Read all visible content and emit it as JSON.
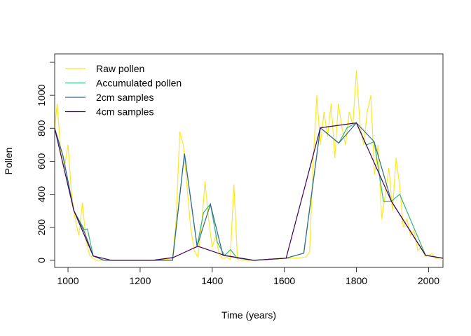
{
  "chart_data": {
    "type": "line",
    "xlabel": "Time (years)",
    "ylabel": "Pollen",
    "xlim": [
      963,
      2040
    ],
    "ylim": [
      -43,
      1251
    ],
    "xticks": [
      1000,
      1200,
      1400,
      1600,
      1800,
      2000
    ],
    "yticks": [
      0,
      200,
      400,
      600,
      800,
      1000,
      1200
    ],
    "ytick_labels": [
      "0",
      "200",
      "400",
      "600",
      "800",
      "1000",
      ""
    ],
    "grid": false,
    "legend_position": "top-left",
    "series": [
      {
        "name": "Raw pollen",
        "color": "#FDE725",
        "x": [
          963,
          970,
          980,
          990,
          1000,
          1010,
          1020,
          1030,
          1040,
          1050,
          1060,
          1070,
          1080,
          1100,
          1150,
          1200,
          1250,
          1290,
          1300,
          1310,
          1320,
          1330,
          1340,
          1350,
          1360,
          1370,
          1380,
          1390,
          1400,
          1410,
          1420,
          1430,
          1440,
          1450,
          1460,
          1470,
          1480,
          1520,
          1560,
          1600,
          1640,
          1660,
          1670,
          1680,
          1690,
          1700,
          1710,
          1720,
          1730,
          1740,
          1750,
          1760,
          1770,
          1780,
          1790,
          1800,
          1810,
          1820,
          1830,
          1840,
          1850,
          1860,
          1870,
          1880,
          1890,
          1900,
          1910,
          1920,
          1930,
          1940,
          1950,
          1960,
          1970,
          1980,
          1990,
          2000,
          2010,
          2020,
          2030,
          2040
        ],
        "y": [
          800,
          950,
          650,
          560,
          700,
          400,
          250,
          150,
          350,
          120,
          30,
          10,
          0,
          0,
          0,
          0,
          0,
          10,
          250,
          780,
          700,
          450,
          200,
          60,
          20,
          200,
          480,
          250,
          80,
          150,
          30,
          10,
          20,
          5,
          460,
          5,
          0,
          0,
          5,
          10,
          15,
          20,
          50,
          600,
          1000,
          700,
          900,
          750,
          950,
          620,
          950,
          800,
          700,
          900,
          820,
          1150,
          820,
          700,
          900,
          1000,
          520,
          700,
          250,
          400,
          560,
          300,
          620,
          450,
          200,
          250,
          150,
          180,
          60,
          80,
          25,
          30,
          40,
          10,
          15,
          5
        ]
      },
      {
        "name": "Accumulated pollen",
        "color": "#35B779",
        "x": [
          963,
          986,
          1016,
          1045,
          1054,
          1070,
          1100,
          1290,
          1323,
          1358,
          1376,
          1395,
          1414,
          1434,
          1451,
          1469,
          1515,
          1605,
          1654,
          1700,
          1751,
          1774,
          1800,
          1827,
          1849,
          1875,
          1897,
          1920,
          1992,
          2040
        ],
        "y": [
          800,
          634,
          302,
          187,
          190,
          26,
          0,
          0,
          647,
          85,
          289,
          340,
          110,
          30,
          64,
          13,
          0,
          13,
          43,
          803,
          710,
          803,
          833,
          698,
          719,
          358,
          358,
          400,
          30,
          13
        ]
      },
      {
        "name": "2cm samples",
        "color": "#31688E",
        "x": [
          963,
          986,
          1016,
          1045,
          1070,
          1100,
          1290,
          1323,
          1358,
          1395,
          1430,
          1515,
          1605,
          1654,
          1700,
          1751,
          1800,
          1849,
          1897,
          1992,
          2040
        ],
        "y": [
          800,
          634,
          302,
          174,
          26,
          0,
          0,
          647,
          85,
          340,
          30,
          0,
          13,
          43,
          803,
          710,
          833,
          719,
          358,
          30,
          13
        ]
      },
      {
        "name": "4cm samples",
        "color": "#440154",
        "x": [
          963,
          1016,
          1070,
          1121,
          1235,
          1292,
          1360,
          1434,
          1515,
          1605,
          1700,
          1800,
          1897,
          1992,
          2040
        ],
        "y": [
          800,
          302,
          26,
          0,
          0,
          17,
          85,
          30,
          0,
          13,
          803,
          833,
          358,
          30,
          13
        ]
      }
    ]
  }
}
